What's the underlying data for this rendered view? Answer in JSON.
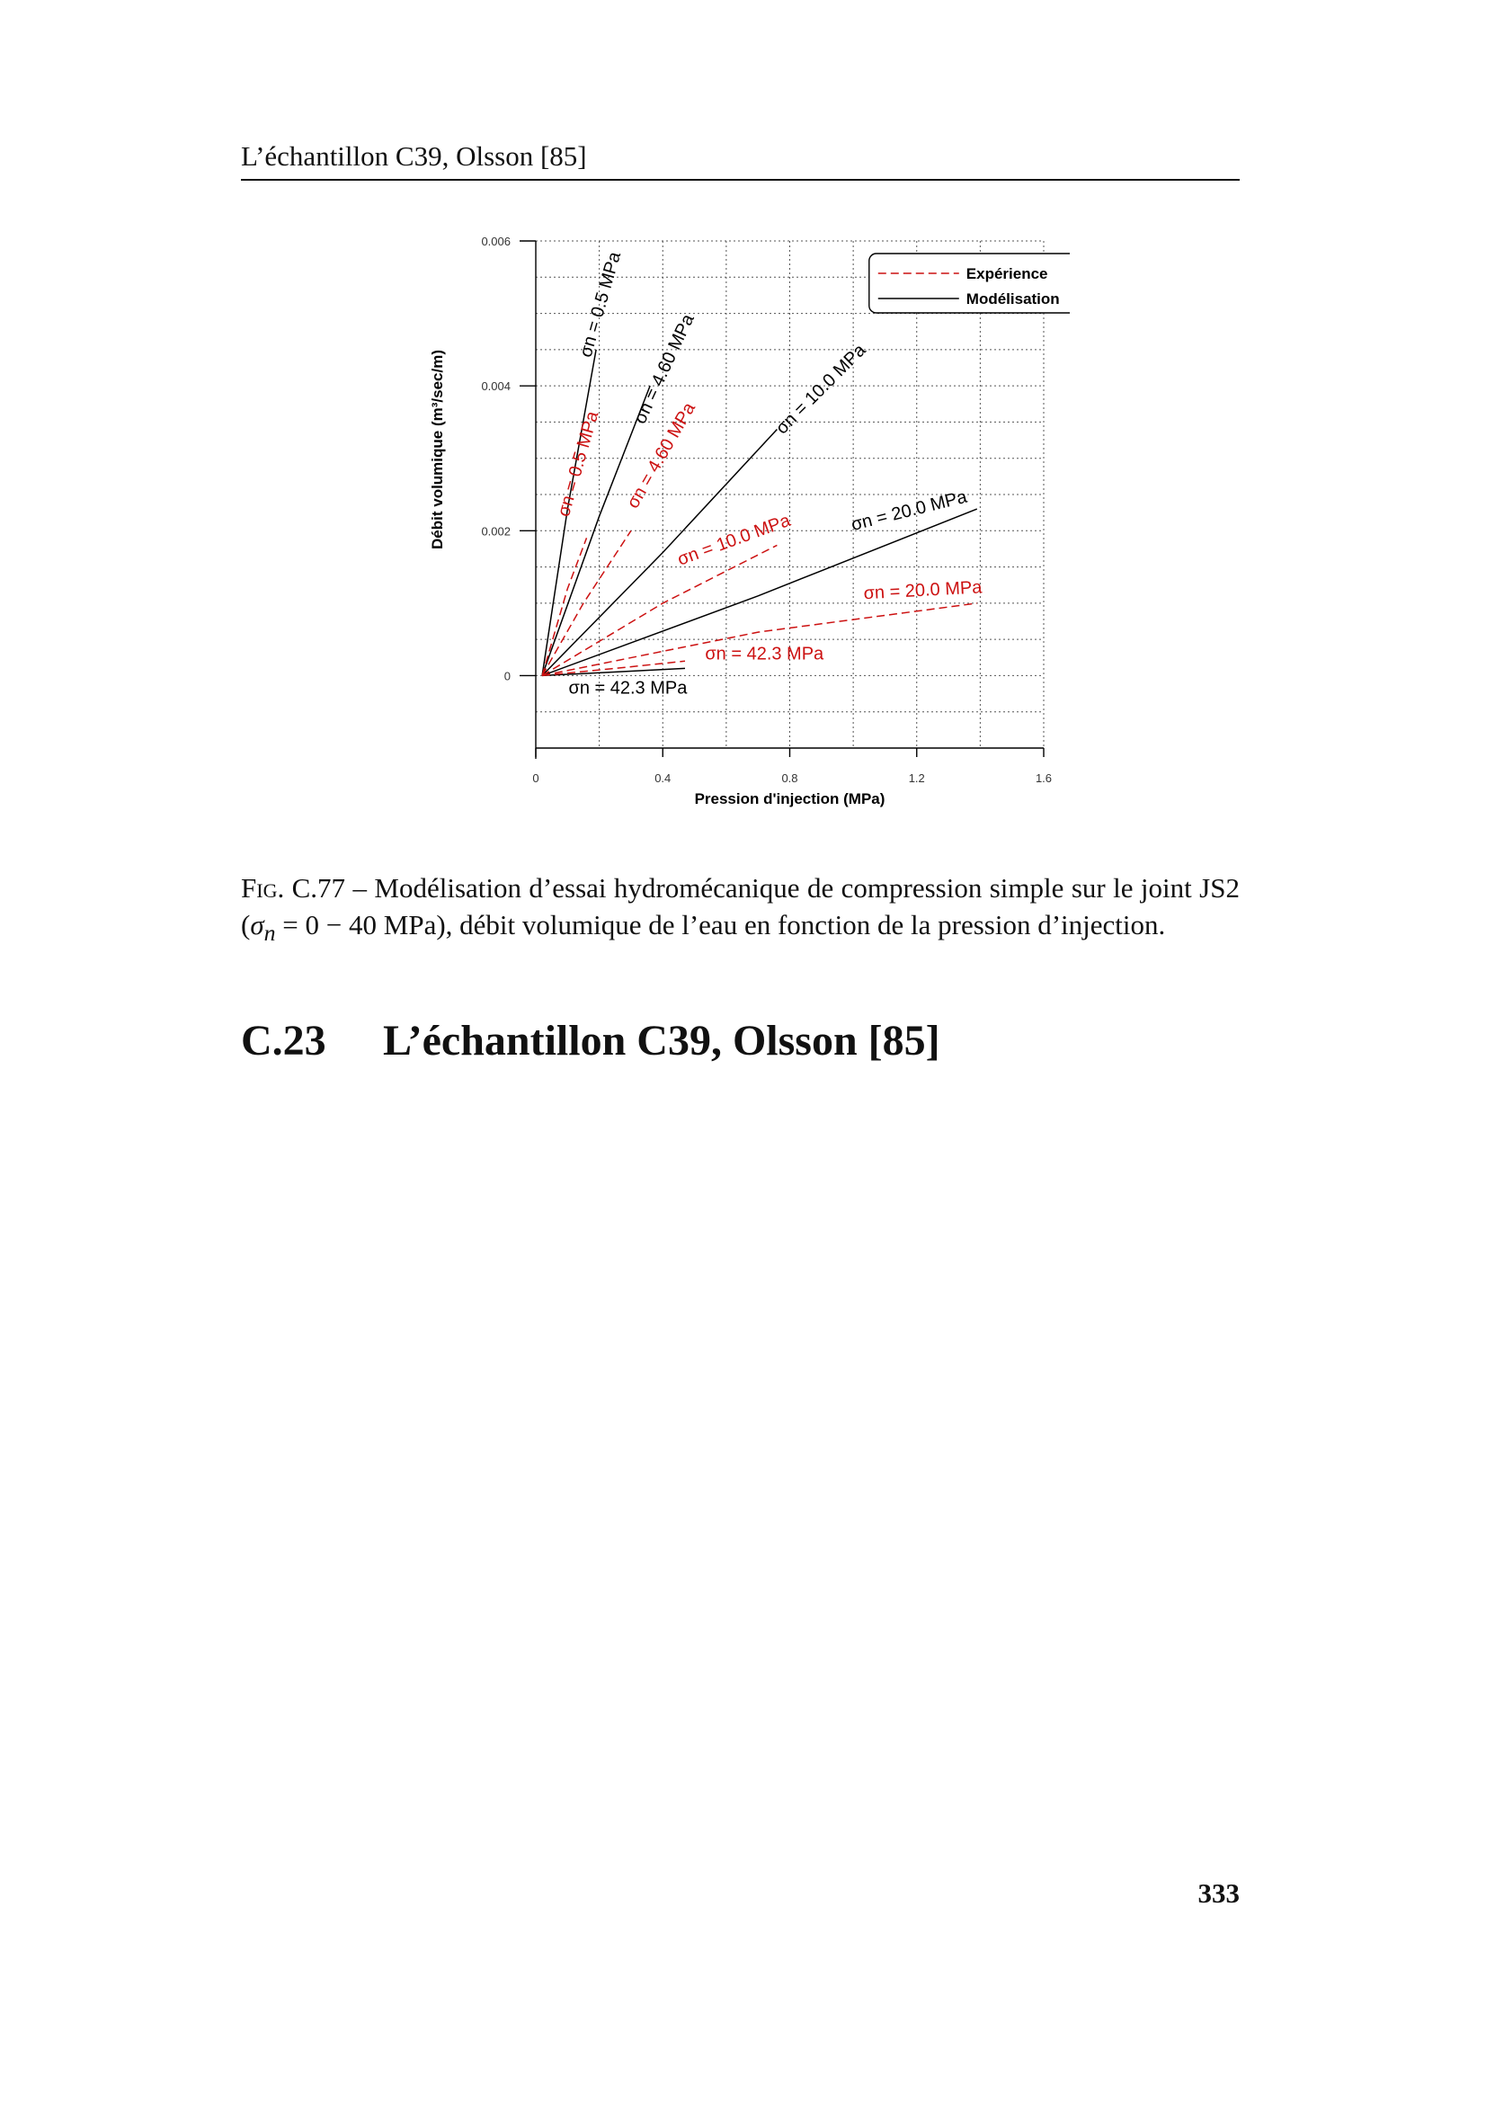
{
  "header": {
    "running_title": "L’échantillon C39, Olsson [85]"
  },
  "figure": {
    "caption_label": "Fig. C.77 –",
    "caption_text_1": " Modélisation d’essai hydromécanique de compression simple sur le joint JS2 (",
    "caption_sigma": "σ",
    "caption_sub": "n",
    "caption_text_2": " = 0 − 40 MPa), débit volumique de l’eau en fonction de la pression d’injection."
  },
  "chart_data": {
    "type": "line",
    "xlabel": "Pression d'injection (MPa)",
    "ylabel": "Débit volumique (m³/sec/m)",
    "xlim": [
      0,
      1.6
    ],
    "ylim": [
      -0.001,
      0.006
    ],
    "xticks": [
      "0",
      "0.4",
      "0.8",
      "1.2",
      "1.6"
    ],
    "yticks": [
      "0",
      "0.002",
      "0.004",
      "0.006"
    ],
    "grid": true,
    "legend": {
      "position": "top-right",
      "entries": [
        "Expérience",
        "Modélisation"
      ]
    },
    "series": [
      {
        "name": "Modélisation",
        "label": "σn = 0.5 MPa",
        "style": "solid",
        "color": "#000000",
        "x": [
          0.02,
          0.1,
          0.19
        ],
        "y": [
          0,
          0.0023,
          0.0045
        ]
      },
      {
        "name": "Modélisation",
        "label": "σn = 4.60 MPa",
        "style": "solid",
        "color": "#000000",
        "x": [
          0.02,
          0.2,
          0.36
        ],
        "y": [
          0,
          0.0022,
          0.004
        ]
      },
      {
        "name": "Modélisation",
        "label": "σn = 10.0 MPa",
        "style": "solid",
        "color": "#000000",
        "x": [
          0.02,
          0.4,
          0.76
        ],
        "y": [
          0,
          0.0017,
          0.0034
        ]
      },
      {
        "name": "Modélisation",
        "label": "σn = 20.0 MPa",
        "style": "solid",
        "color": "#000000",
        "x": [
          0.02,
          0.7,
          1.39
        ],
        "y": [
          0,
          0.0011,
          0.0023
        ]
      },
      {
        "name": "Modélisation",
        "label": "σn = 42.3 MPa",
        "style": "solid",
        "color": "#000000",
        "x": [
          0.02,
          0.25,
          0.47
        ],
        "y": [
          0,
          5e-05,
          0.0001
        ]
      },
      {
        "name": "Expérience",
        "label": "σn = 0.5 MPa",
        "style": "dashed",
        "color": "#cc1111",
        "x": [
          0.02,
          0.1,
          0.16
        ],
        "y": [
          0,
          0.0012,
          0.0019
        ]
      },
      {
        "name": "Expérience",
        "label": "σn = 4.60 MPa",
        "style": "dashed",
        "color": "#cc1111",
        "x": [
          0.02,
          0.15,
          0.3
        ],
        "y": [
          0,
          0.001,
          0.002
        ]
      },
      {
        "name": "Expérience",
        "label": "σn = 10.0 MPa",
        "style": "dashed",
        "color": "#cc1111",
        "x": [
          0.02,
          0.4,
          0.76
        ],
        "y": [
          0,
          0.001,
          0.0018
        ]
      },
      {
        "name": "Expérience",
        "label": "σn = 20.0 MPa",
        "style": "dashed",
        "color": "#cc1111",
        "x": [
          0.02,
          0.7,
          1.39
        ],
        "y": [
          0,
          0.0006,
          0.001
        ]
      },
      {
        "name": "Expérience",
        "label": "σn = 42.3 MPa",
        "style": "dashed",
        "color": "#cc1111",
        "x": [
          0.02,
          0.25,
          0.47
        ],
        "y": [
          0,
          0.0001,
          0.0002
        ]
      }
    ],
    "annotations": [
      {
        "text": "σn = 0.5 MPa",
        "color": "#000000",
        "x": 0.22,
        "y": 0.0051,
        "angle": -74
      },
      {
        "text": "σn = 4.60 MPa",
        "color": "#000000",
        "x": 0.42,
        "y": 0.0042,
        "angle": -65
      },
      {
        "text": "σn = 10.0 MPa",
        "color": "#000000",
        "x": 0.91,
        "y": 0.0039,
        "angle": -45
      },
      {
        "text": "σn = 20.0 MPa",
        "color": "#000000",
        "x": 1.18,
        "y": 0.0022,
        "angle": -14
      },
      {
        "text": "σn = 42.3 MPa",
        "color": "#000000",
        "x": 0.29,
        "y": -0.00025,
        "angle": 0
      },
      {
        "text": "σn = 0.5 MPa",
        "color": "#cc1111",
        "x": 0.15,
        "y": 0.0029,
        "angle": -74
      },
      {
        "text": "σn = 4.60 MPa",
        "color": "#cc1111",
        "x": 0.41,
        "y": 0.003,
        "angle": -60
      },
      {
        "text": "σn = 10.0 MPa",
        "color": "#cc1111",
        "x": 0.63,
        "y": 0.0018,
        "angle": -20
      },
      {
        "text": "σn = 20.0 MPa",
        "color": "#cc1111",
        "x": 1.22,
        "y": 0.0011,
        "angle": -3
      },
      {
        "text": "σn = 42.3 MPa",
        "color": "#cc1111",
        "x": 0.72,
        "y": 0.00022,
        "angle": 0
      }
    ]
  },
  "section": {
    "number": "C.23",
    "title": "L’échantillon C39, Olsson [85]"
  },
  "page": {
    "number": "333"
  }
}
